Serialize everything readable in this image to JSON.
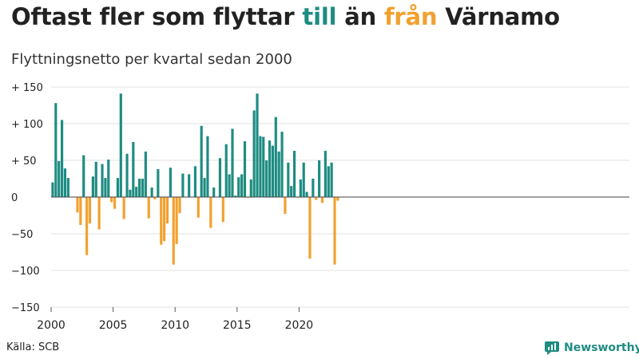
{
  "title": {
    "part1": "Oftast fler som flyttar",
    "word_till": "till",
    "part2": "än",
    "word_fran": "från",
    "part3": "Värnamo"
  },
  "subtitle": "Flyttningsnetto per kvartal sedan 2000",
  "source": "Källa: SCB",
  "brand": {
    "name": "Newsworthy",
    "icon": "newsworthy-logo-icon"
  },
  "colors": {
    "positive": "#1e8c82",
    "negative": "#f2a12f",
    "text": "#222222"
  },
  "chart_data": {
    "type": "bar",
    "title": "Oftast fler som flyttar till än från Värnamo",
    "subtitle": "Flyttningsnetto per kvartal sedan 2000",
    "xlabel": "",
    "ylabel": "",
    "ylim": [
      -150,
      150
    ],
    "y_ticks": [
      {
        "value": 150,
        "label": "+ 150"
      },
      {
        "value": 100,
        "label": "+ 100"
      },
      {
        "value": 50,
        "label": "+  50"
      },
      {
        "value": 0,
        "label": "0"
      },
      {
        "value": -50,
        "label": "−50"
      },
      {
        "value": -100,
        "label": "−100"
      },
      {
        "value": -150,
        "label": "−150"
      }
    ],
    "x_ticks": [
      {
        "value": 2000,
        "label": "2000"
      },
      {
        "value": 2005,
        "label": "2005"
      },
      {
        "value": 2010,
        "label": "2010"
      },
      {
        "value": 2015,
        "label": "2015"
      },
      {
        "value": 2020,
        "label": "2020"
      }
    ],
    "grid": true,
    "categories": [
      "2000 K1",
      "2000 K2",
      "2000 K3",
      "2000 K4",
      "2001 K1",
      "2001 K2",
      "2001 K3",
      "2001 K4",
      "2002 K1",
      "2002 K2",
      "2002 K3",
      "2002 K4",
      "2003 K1",
      "2003 K2",
      "2003 K3",
      "2003 K4",
      "2004 K1",
      "2004 K2",
      "2004 K3",
      "2004 K4",
      "2005 K1",
      "2005 K2",
      "2005 K3",
      "2005 K4",
      "2006 K1",
      "2006 K2",
      "2006 K3",
      "2006 K4",
      "2007 K1",
      "2007 K2",
      "2007 K3",
      "2007 K4",
      "2008 K1",
      "2008 K2",
      "2008 K3",
      "2008 K4",
      "2009 K1",
      "2009 K2",
      "2009 K3",
      "2009 K4",
      "2010 K1",
      "2010 K2",
      "2010 K3",
      "2010 K4",
      "2011 K1",
      "2011 K2",
      "2011 K3",
      "2011 K4",
      "2012 K1",
      "2012 K2",
      "2012 K3",
      "2012 K4",
      "2013 K1",
      "2013 K2",
      "2013 K3",
      "2013 K4",
      "2014 K1",
      "2014 K2",
      "2014 K3",
      "2014 K4",
      "2015 K1",
      "2015 K2",
      "2015 K3",
      "2015 K4",
      "2016 K1",
      "2016 K2",
      "2016 K3",
      "2016 K4",
      "2017 K1",
      "2017 K2",
      "2017 K3",
      "2017 K4",
      "2018 K1",
      "2018 K2",
      "2018 K3",
      "2018 K4",
      "2019 K1",
      "2019 K2",
      "2019 K3",
      "2019 K4",
      "2020 K1",
      "2020 K2",
      "2020 K3",
      "2020 K4",
      "2021 K1",
      "2021 K2",
      "2021 K3",
      "2021 K4",
      "2022 K1",
      "2022 K2",
      "2022 K3",
      "2022 K4",
      "2023 K1"
    ],
    "values": [
      20,
      128,
      49,
      105,
      39,
      26,
      0,
      0,
      -21,
      -38,
      57,
      -79,
      -36,
      28,
      48,
      -44,
      45,
      26,
      51,
      -7,
      -16,
      26,
      141,
      -30,
      59,
      10,
      75,
      14,
      25,
      25,
      62,
      -29,
      13,
      -3,
      38,
      -65,
      -60,
      -36,
      40,
      -92,
      -64,
      -22,
      32,
      0,
      31,
      0,
      42,
      -28,
      97,
      26,
      83,
      -42,
      13,
      0,
      53,
      -34,
      72,
      31,
      93,
      2,
      27,
      31,
      76,
      -1,
      24,
      118,
      141,
      83,
      82,
      50,
      77,
      70,
      109,
      62,
      89,
      -23,
      47,
      15,
      63,
      -1,
      24,
      47,
      7,
      -84,
      25,
      -4,
      50,
      -8,
      63,
      42,
      47,
      -92,
      -5
    ]
  }
}
